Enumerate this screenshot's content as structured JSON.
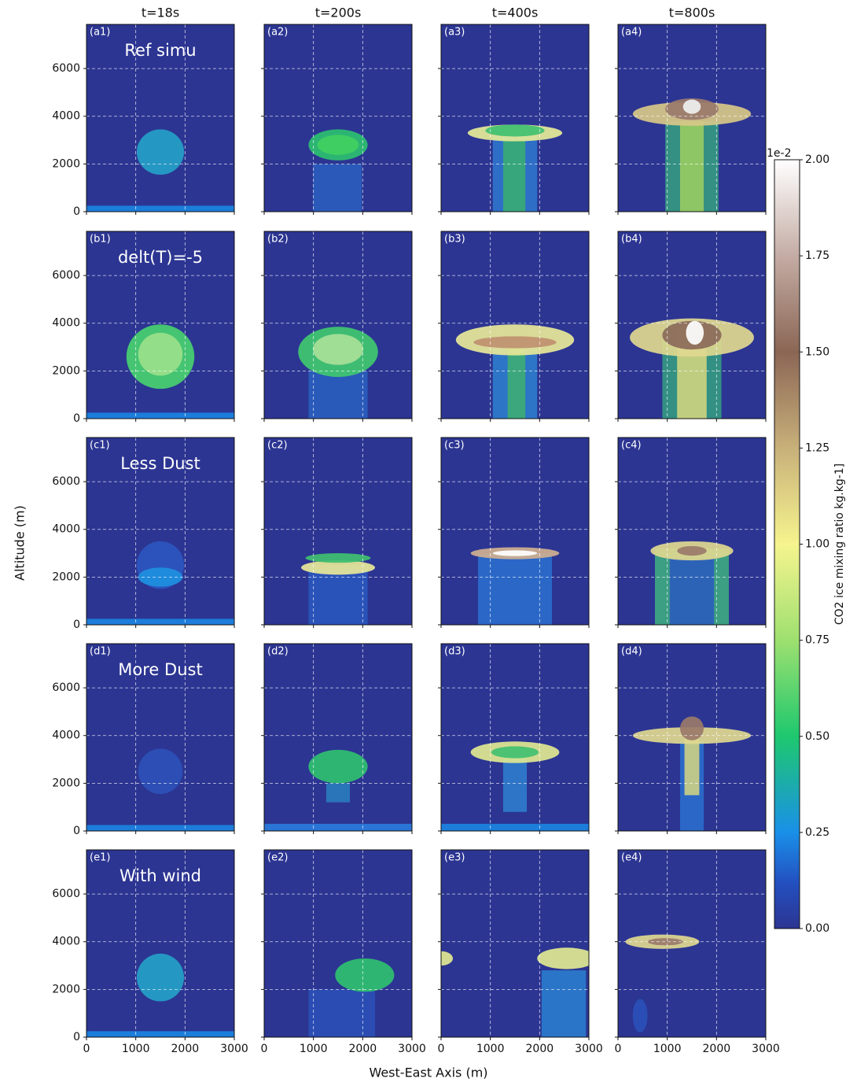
{
  "chart_data": {
    "type": "heatmap",
    "column_titles": [
      "t=18s",
      "t=200s",
      "t=400s",
      "t=800s"
    ],
    "row_titles": [
      "Ref simu",
      "delt(T)=-5",
      "Less Dust",
      "More Dust",
      "With wind"
    ],
    "panel_labels": [
      [
        "(a1)",
        "(a2)",
        "(a3)",
        "(a4)"
      ],
      [
        "(b1)",
        "(b2)",
        "(b3)",
        "(b4)"
      ],
      [
        "(c1)",
        "(c2)",
        "(c3)",
        "(c4)"
      ],
      [
        "(d1)",
        "(d2)",
        "(d3)",
        "(d4)"
      ],
      [
        "(e1)",
        "(e2)",
        "(e3)",
        "(e4)"
      ]
    ],
    "xlabel": "West-East Axis (m)",
    "ylabel": "Altitude (m)",
    "xlim": [
      0,
      3000
    ],
    "xticks": [
      0,
      1000,
      2000,
      3000
    ],
    "ylim": [
      0,
      7850
    ],
    "yticks": [
      0,
      2000,
      4000,
      6000
    ],
    "grid": true,
    "background_color": "#2c3592",
    "colorbar": {
      "label": "CO2 ice mixing ratio kg.kg-1]",
      "offset_label": "1e-2",
      "lim": [
        0,
        2
      ],
      "ticks": [
        {
          "value": 0,
          "label": "0.00"
        },
        {
          "value": 0.25,
          "label": "0.25"
        },
        {
          "value": 0.5,
          "label": "0.50"
        },
        {
          "value": 0.75,
          "label": "0.75"
        },
        {
          "value": 1,
          "label": "1.00"
        },
        {
          "value": 1.25,
          "label": "1.25"
        },
        {
          "value": 1.5,
          "label": "1.50"
        },
        {
          "value": 1.75,
          "label": "1.75"
        },
        {
          "value": 2,
          "label": "2.00"
        }
      ]
    }
  }
}
